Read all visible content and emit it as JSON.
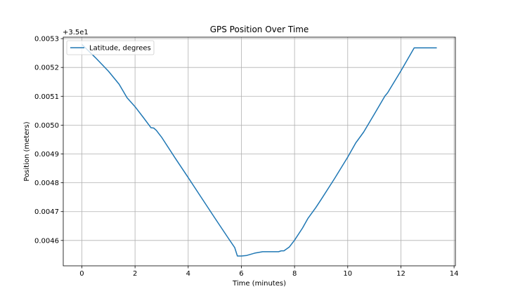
{
  "chart_data": {
    "type": "line",
    "title": "GPS Position Over Time",
    "xlabel": "Time (minutes)",
    "ylabel": "Position (meters)",
    "y_offset_label": "+3.5e1",
    "xlim": [
      -0.7,
      14.05
    ],
    "ylim": [
      0.004512,
      0.005305
    ],
    "x_ticks": [
      0,
      2,
      4,
      6,
      8,
      10,
      12,
      14
    ],
    "y_ticks": [
      0.0046,
      0.0047,
      0.0048,
      0.0049,
      0.005,
      0.0051,
      0.0052,
      0.0053
    ],
    "y_tick_labels": [
      "0.0046",
      "0.0047",
      "0.0048",
      "0.0049",
      "0.0050",
      "0.0051",
      "0.0052",
      "0.0053"
    ],
    "grid": true,
    "legend_position": "top-left",
    "colors": {
      "series": "#1f77b4",
      "grid": "#b0b0b0",
      "axes": "#000000"
    },
    "series": [
      {
        "name": "Latitude, degrees",
        "x": [
          0,
          0.5,
          1.0,
          1.4,
          1.7,
          2.0,
          2.3,
          2.6,
          2.7,
          2.8,
          3.0,
          3.5,
          4.0,
          4.5,
          5.0,
          5.5,
          5.75,
          5.85,
          6.0,
          6.2,
          6.5,
          6.8,
          7.0,
          7.4,
          7.5,
          7.6,
          7.8,
          8.0,
          8.3,
          8.5,
          8.8,
          9.0,
          9.5,
          10.0,
          10.3,
          10.6,
          11.0,
          11.4,
          11.5,
          12.0,
          12.5,
          13.35
        ],
        "y": [
          0.00528,
          0.005235,
          0.005187,
          0.005142,
          0.005095,
          0.005064,
          0.005028,
          0.004991,
          0.00499,
          0.004982,
          0.004958,
          0.004887,
          0.004818,
          0.004748,
          0.004678,
          0.004609,
          0.004575,
          0.004546,
          0.004546,
          0.004548,
          0.004556,
          0.004561,
          0.004561,
          0.004561,
          0.004564,
          0.004564,
          0.004577,
          0.004601,
          0.004643,
          0.004676,
          0.004714,
          0.004742,
          0.004814,
          0.004889,
          0.004938,
          0.004976,
          0.005038,
          0.005101,
          0.005112,
          0.005188,
          0.005268,
          0.005268
        ]
      }
    ]
  }
}
